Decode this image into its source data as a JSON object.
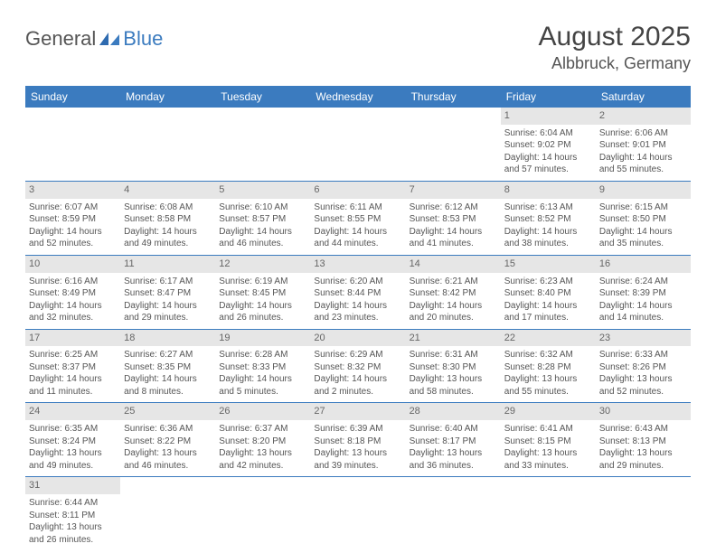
{
  "logo": {
    "text1": "General",
    "text2": "Blue"
  },
  "title": {
    "monthYear": "August 2025",
    "location": "Albbruck, Germany"
  },
  "colors": {
    "headerBg": "#3b7bbf",
    "headerText": "#ffffff",
    "dayNumBg": "#e6e6e6",
    "cellText": "#555555",
    "divider": "#3b7bbf"
  },
  "weekdays": [
    "Sunday",
    "Monday",
    "Tuesday",
    "Wednesday",
    "Thursday",
    "Friday",
    "Saturday"
  ],
  "weeks": [
    [
      null,
      null,
      null,
      null,
      null,
      {
        "n": "1",
        "sr": "Sunrise: 6:04 AM",
        "ss": "Sunset: 9:02 PM",
        "dl1": "Daylight: 14 hours",
        "dl2": "and 57 minutes."
      },
      {
        "n": "2",
        "sr": "Sunrise: 6:06 AM",
        "ss": "Sunset: 9:01 PM",
        "dl1": "Daylight: 14 hours",
        "dl2": "and 55 minutes."
      }
    ],
    [
      {
        "n": "3",
        "sr": "Sunrise: 6:07 AM",
        "ss": "Sunset: 8:59 PM",
        "dl1": "Daylight: 14 hours",
        "dl2": "and 52 minutes."
      },
      {
        "n": "4",
        "sr": "Sunrise: 6:08 AM",
        "ss": "Sunset: 8:58 PM",
        "dl1": "Daylight: 14 hours",
        "dl2": "and 49 minutes."
      },
      {
        "n": "5",
        "sr": "Sunrise: 6:10 AM",
        "ss": "Sunset: 8:57 PM",
        "dl1": "Daylight: 14 hours",
        "dl2": "and 46 minutes."
      },
      {
        "n": "6",
        "sr": "Sunrise: 6:11 AM",
        "ss": "Sunset: 8:55 PM",
        "dl1": "Daylight: 14 hours",
        "dl2": "and 44 minutes."
      },
      {
        "n": "7",
        "sr": "Sunrise: 6:12 AM",
        "ss": "Sunset: 8:53 PM",
        "dl1": "Daylight: 14 hours",
        "dl2": "and 41 minutes."
      },
      {
        "n": "8",
        "sr": "Sunrise: 6:13 AM",
        "ss": "Sunset: 8:52 PM",
        "dl1": "Daylight: 14 hours",
        "dl2": "and 38 minutes."
      },
      {
        "n": "9",
        "sr": "Sunrise: 6:15 AM",
        "ss": "Sunset: 8:50 PM",
        "dl1": "Daylight: 14 hours",
        "dl2": "and 35 minutes."
      }
    ],
    [
      {
        "n": "10",
        "sr": "Sunrise: 6:16 AM",
        "ss": "Sunset: 8:49 PM",
        "dl1": "Daylight: 14 hours",
        "dl2": "and 32 minutes."
      },
      {
        "n": "11",
        "sr": "Sunrise: 6:17 AM",
        "ss": "Sunset: 8:47 PM",
        "dl1": "Daylight: 14 hours",
        "dl2": "and 29 minutes."
      },
      {
        "n": "12",
        "sr": "Sunrise: 6:19 AM",
        "ss": "Sunset: 8:45 PM",
        "dl1": "Daylight: 14 hours",
        "dl2": "and 26 minutes."
      },
      {
        "n": "13",
        "sr": "Sunrise: 6:20 AM",
        "ss": "Sunset: 8:44 PM",
        "dl1": "Daylight: 14 hours",
        "dl2": "and 23 minutes."
      },
      {
        "n": "14",
        "sr": "Sunrise: 6:21 AM",
        "ss": "Sunset: 8:42 PM",
        "dl1": "Daylight: 14 hours",
        "dl2": "and 20 minutes."
      },
      {
        "n": "15",
        "sr": "Sunrise: 6:23 AM",
        "ss": "Sunset: 8:40 PM",
        "dl1": "Daylight: 14 hours",
        "dl2": "and 17 minutes."
      },
      {
        "n": "16",
        "sr": "Sunrise: 6:24 AM",
        "ss": "Sunset: 8:39 PM",
        "dl1": "Daylight: 14 hours",
        "dl2": "and 14 minutes."
      }
    ],
    [
      {
        "n": "17",
        "sr": "Sunrise: 6:25 AM",
        "ss": "Sunset: 8:37 PM",
        "dl1": "Daylight: 14 hours",
        "dl2": "and 11 minutes."
      },
      {
        "n": "18",
        "sr": "Sunrise: 6:27 AM",
        "ss": "Sunset: 8:35 PM",
        "dl1": "Daylight: 14 hours",
        "dl2": "and 8 minutes."
      },
      {
        "n": "19",
        "sr": "Sunrise: 6:28 AM",
        "ss": "Sunset: 8:33 PM",
        "dl1": "Daylight: 14 hours",
        "dl2": "and 5 minutes."
      },
      {
        "n": "20",
        "sr": "Sunrise: 6:29 AM",
        "ss": "Sunset: 8:32 PM",
        "dl1": "Daylight: 14 hours",
        "dl2": "and 2 minutes."
      },
      {
        "n": "21",
        "sr": "Sunrise: 6:31 AM",
        "ss": "Sunset: 8:30 PM",
        "dl1": "Daylight: 13 hours",
        "dl2": "and 58 minutes."
      },
      {
        "n": "22",
        "sr": "Sunrise: 6:32 AM",
        "ss": "Sunset: 8:28 PM",
        "dl1": "Daylight: 13 hours",
        "dl2": "and 55 minutes."
      },
      {
        "n": "23",
        "sr": "Sunrise: 6:33 AM",
        "ss": "Sunset: 8:26 PM",
        "dl1": "Daylight: 13 hours",
        "dl2": "and 52 minutes."
      }
    ],
    [
      {
        "n": "24",
        "sr": "Sunrise: 6:35 AM",
        "ss": "Sunset: 8:24 PM",
        "dl1": "Daylight: 13 hours",
        "dl2": "and 49 minutes."
      },
      {
        "n": "25",
        "sr": "Sunrise: 6:36 AM",
        "ss": "Sunset: 8:22 PM",
        "dl1": "Daylight: 13 hours",
        "dl2": "and 46 minutes."
      },
      {
        "n": "26",
        "sr": "Sunrise: 6:37 AM",
        "ss": "Sunset: 8:20 PM",
        "dl1": "Daylight: 13 hours",
        "dl2": "and 42 minutes."
      },
      {
        "n": "27",
        "sr": "Sunrise: 6:39 AM",
        "ss": "Sunset: 8:18 PM",
        "dl1": "Daylight: 13 hours",
        "dl2": "and 39 minutes."
      },
      {
        "n": "28",
        "sr": "Sunrise: 6:40 AM",
        "ss": "Sunset: 8:17 PM",
        "dl1": "Daylight: 13 hours",
        "dl2": "and 36 minutes."
      },
      {
        "n": "29",
        "sr": "Sunrise: 6:41 AM",
        "ss": "Sunset: 8:15 PM",
        "dl1": "Daylight: 13 hours",
        "dl2": "and 33 minutes."
      },
      {
        "n": "30",
        "sr": "Sunrise: 6:43 AM",
        "ss": "Sunset: 8:13 PM",
        "dl1": "Daylight: 13 hours",
        "dl2": "and 29 minutes."
      }
    ],
    [
      {
        "n": "31",
        "sr": "Sunrise: 6:44 AM",
        "ss": "Sunset: 8:11 PM",
        "dl1": "Daylight: 13 hours",
        "dl2": "and 26 minutes."
      },
      null,
      null,
      null,
      null,
      null,
      null
    ]
  ]
}
